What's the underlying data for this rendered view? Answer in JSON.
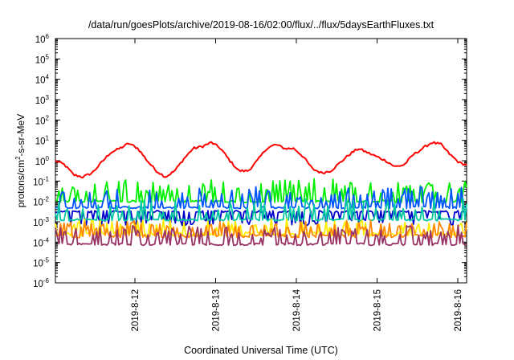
{
  "chart_data": {
    "type": "line",
    "title": "/data/run/goesPlots/archive/2019-08-16/02:00/flux/../flux/5daysEarthFluxes.txt",
    "xlabel": "Coordinated Universal Time (UTC)",
    "ylabel": "protons/cm2-s-sr-MeV",
    "ylabel_parts": {
      "pre": "protons/cm",
      "sup": "2",
      "post": "-s-sr-MeV"
    },
    "yscale": "log",
    "ylim_exp": [
      -6,
      6
    ],
    "y_ticks": [
      {
        "exp": -6
      },
      {
        "exp": -5
      },
      {
        "exp": -4
      },
      {
        "exp": -3
      },
      {
        "exp": -2
      },
      {
        "exp": -1
      },
      {
        "exp": 0
      },
      {
        "exp": 1
      },
      {
        "exp": 2
      },
      {
        "exp": 3
      },
      {
        "exp": 4
      },
      {
        "exp": 5
      },
      {
        "exp": 6
      }
    ],
    "xlim": [
      2019.0811,
      2019.0816
    ],
    "x_ticks": [
      {
        "label": "2019-8-12"
      },
      {
        "label": "2019-8-13"
      },
      {
        "label": "2019-8-14"
      },
      {
        "label": "2019-8-15"
      },
      {
        "label": "2019-8-16"
      }
    ],
    "series": [
      {
        "color": "#ff0000",
        "profile": [
          [
            0,
            0
          ],
          [
            0.5,
            -0.2
          ],
          [
            1,
            -0.7
          ],
          [
            1.5,
            -0.8
          ],
          [
            2,
            -0.6
          ],
          [
            2.5,
            -0.1
          ],
          [
            3,
            0.4
          ],
          [
            3.5,
            0.6
          ],
          [
            4,
            0.85
          ],
          [
            4.5,
            0.6
          ],
          [
            5,
            0.0
          ],
          [
            5.5,
            -0.5
          ],
          [
            6,
            -0.8
          ],
          [
            6.5,
            -0.5
          ],
          [
            7,
            0.1
          ],
          [
            7.5,
            0.6
          ],
          [
            8,
            0.7
          ],
          [
            8.5,
            0.9
          ],
          [
            9,
            0.6
          ],
          [
            9.5,
            0.0
          ],
          [
            10,
            -0.5
          ],
          [
            10.5,
            -0.5
          ],
          [
            11,
            0.0
          ],
          [
            11.5,
            0.6
          ],
          [
            12,
            0.8
          ],
          [
            12.5,
            0.6
          ],
          [
            13,
            0.6
          ],
          [
            13.5,
            0.2
          ],
          [
            14,
            -0.4
          ],
          [
            14.5,
            -0.6
          ],
          [
            15,
            -0.5
          ],
          [
            15.5,
            -0.1
          ],
          [
            16,
            0.3
          ],
          [
            16.5,
            0.6
          ],
          [
            17,
            0.4
          ],
          [
            17.5,
            0.2
          ],
          [
            18,
            0.0
          ],
          [
            18.5,
            -0.3
          ],
          [
            19,
            -0.2
          ],
          [
            19.5,
            0.3
          ],
          [
            20,
            0.6
          ],
          [
            20.5,
            0.9
          ],
          [
            21,
            0.8
          ],
          [
            21.5,
            0.3
          ],
          [
            22,
            -0.1
          ],
          [
            22.4,
            -0.2
          ]
        ],
        "noise": 0.06,
        "spikes": null
      },
      {
        "color": "#00ee00",
        "base": -2.0,
        "noise": 0.05,
        "spikes": {
          "prob": 0.35,
          "min": 0.4,
          "max": 1.1,
          "dir": 1
        }
      },
      {
        "color": "#0055ff",
        "base": -2.3,
        "noise": 0.05,
        "spikes": {
          "prob": 0.35,
          "min": 0.3,
          "max": 1.0,
          "dir": 1
        }
      },
      {
        "color": "#0000cc",
        "base": -2.5,
        "noise": 0.05,
        "spikes": {
          "prob": 0.3,
          "min": 0.3,
          "max": 0.7,
          "dir": -1
        }
      },
      {
        "color": "#00c8a0",
        "base": -2.9,
        "noise": 0.05,
        "spikes": {
          "prob": 0.3,
          "min": 0.3,
          "max": 1.0,
          "dir": 1
        }
      },
      {
        "color": "#ffee00",
        "base": -3.6,
        "noise": 0.1,
        "spikes": {
          "prob": 0.3,
          "min": 0.3,
          "max": 0.7,
          "dir": 1
        }
      },
      {
        "color": "#ff8800",
        "base": -3.7,
        "noise": 0.08,
        "spikes": {
          "prob": 0.3,
          "min": 0.3,
          "max": 0.7,
          "dir": 1
        }
      },
      {
        "color": "#993366",
        "base": -4.1,
        "noise": 0.06,
        "spikes": {
          "prob": 0.35,
          "min": 0.3,
          "max": 0.9,
          "dir": 1
        }
      }
    ]
  }
}
